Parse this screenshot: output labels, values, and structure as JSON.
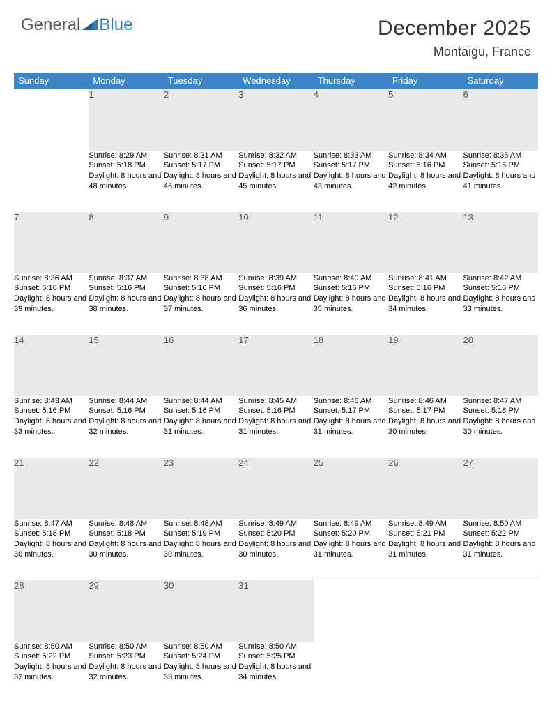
{
  "logo": {
    "general": "General",
    "blue": "Blue"
  },
  "header": {
    "title": "December 2025",
    "location": "Montaigu, France"
  },
  "colors": {
    "header_bg": "#3d86c6",
    "header_fg": "#ffffff",
    "daynum_bg": "#e8e8e8",
    "row_border": "#2a6aa3",
    "logo_gray": "#58595b",
    "logo_blue": "#2f7bbf"
  },
  "weekdays": [
    "Sunday",
    "Monday",
    "Tuesday",
    "Wednesday",
    "Thursday",
    "Friday",
    "Saturday"
  ],
  "weeks": [
    {
      "nums": [
        "",
        "1",
        "2",
        "3",
        "4",
        "5",
        "6"
      ],
      "cells": [
        "",
        "Sunrise: 8:29 AM\nSunset: 5:18 PM\nDaylight: 8 hours and 48 minutes.",
        "Sunrise: 8:31 AM\nSunset: 5:17 PM\nDaylight: 8 hours and 46 minutes.",
        "Sunrise: 8:32 AM\nSunset: 5:17 PM\nDaylight: 8 hours and 45 minutes.",
        "Sunrise: 8:33 AM\nSunset: 5:17 PM\nDaylight: 8 hours and 43 minutes.",
        "Sunrise: 8:34 AM\nSunset: 5:16 PM\nDaylight: 8 hours and 42 minutes.",
        "Sunrise: 8:35 AM\nSunset: 5:16 PM\nDaylight: 8 hours and 41 minutes."
      ]
    },
    {
      "nums": [
        "7",
        "8",
        "9",
        "10",
        "11",
        "12",
        "13"
      ],
      "cells": [
        "Sunrise: 8:36 AM\nSunset: 5:16 PM\nDaylight: 8 hours and 39 minutes.",
        "Sunrise: 8:37 AM\nSunset: 5:16 PM\nDaylight: 8 hours and 38 minutes.",
        "Sunrise: 8:38 AM\nSunset: 5:16 PM\nDaylight: 8 hours and 37 minutes.",
        "Sunrise: 8:39 AM\nSunset: 5:16 PM\nDaylight: 8 hours and 36 minutes.",
        "Sunrise: 8:40 AM\nSunset: 5:16 PM\nDaylight: 8 hours and 35 minutes.",
        "Sunrise: 8:41 AM\nSunset: 5:16 PM\nDaylight: 8 hours and 34 minutes.",
        "Sunrise: 8:42 AM\nSunset: 5:16 PM\nDaylight: 8 hours and 33 minutes."
      ]
    },
    {
      "nums": [
        "14",
        "15",
        "16",
        "17",
        "18",
        "19",
        "20"
      ],
      "cells": [
        "Sunrise: 8:43 AM\nSunset: 5:16 PM\nDaylight: 8 hours and 33 minutes.",
        "Sunrise: 8:44 AM\nSunset: 5:16 PM\nDaylight: 8 hours and 32 minutes.",
        "Sunrise: 8:44 AM\nSunset: 5:16 PM\nDaylight: 8 hours and 31 minutes.",
        "Sunrise: 8:45 AM\nSunset: 5:16 PM\nDaylight: 8 hours and 31 minutes.",
        "Sunrise: 8:46 AM\nSunset: 5:17 PM\nDaylight: 8 hours and 31 minutes.",
        "Sunrise: 8:46 AM\nSunset: 5:17 PM\nDaylight: 8 hours and 30 minutes.",
        "Sunrise: 8:47 AM\nSunset: 5:18 PM\nDaylight: 8 hours and 30 minutes."
      ]
    },
    {
      "nums": [
        "21",
        "22",
        "23",
        "24",
        "25",
        "26",
        "27"
      ],
      "cells": [
        "Sunrise: 8:47 AM\nSunset: 5:18 PM\nDaylight: 8 hours and 30 minutes.",
        "Sunrise: 8:48 AM\nSunset: 5:18 PM\nDaylight: 8 hours and 30 minutes.",
        "Sunrise: 8:48 AM\nSunset: 5:19 PM\nDaylight: 8 hours and 30 minutes.",
        "Sunrise: 8:49 AM\nSunset: 5:20 PM\nDaylight: 8 hours and 30 minutes.",
        "Sunrise: 8:49 AM\nSunset: 5:20 PM\nDaylight: 8 hours and 31 minutes.",
        "Sunrise: 8:49 AM\nSunset: 5:21 PM\nDaylight: 8 hours and 31 minutes.",
        "Sunrise: 8:50 AM\nSunset: 5:22 PM\nDaylight: 8 hours and 31 minutes."
      ]
    },
    {
      "nums": [
        "28",
        "29",
        "30",
        "31",
        "",
        "",
        ""
      ],
      "cells": [
        "Sunrise: 8:50 AM\nSunset: 5:22 PM\nDaylight: 8 hours and 32 minutes.",
        "Sunrise: 8:50 AM\nSunset: 5:23 PM\nDaylight: 8 hours and 32 minutes.",
        "Sunrise: 8:50 AM\nSunset: 5:24 PM\nDaylight: 8 hours and 33 minutes.",
        "Sunrise: 8:50 AM\nSunset: 5:25 PM\nDaylight: 8 hours and 34 minutes.",
        "",
        "",
        ""
      ]
    }
  ]
}
